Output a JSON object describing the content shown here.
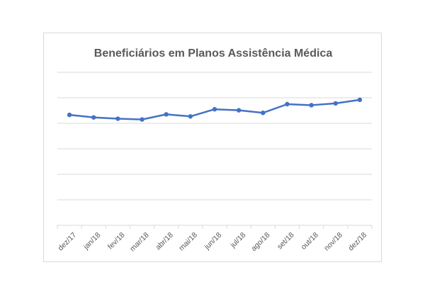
{
  "chart_data": {
    "type": "line",
    "title": "Beneficiários em Planos Assistência Médica",
    "xlabel": "",
    "ylabel": "",
    "categories": [
      "dez/17",
      "jan/18",
      "fev/18",
      "mar/18",
      "abr/18",
      "mai/18",
      "jun/18",
      "jul/18",
      "ago/18",
      "set/18",
      "out/18",
      "nov/18",
      "dez/18"
    ],
    "series": [
      {
        "values": [
          4.33,
          4.23,
          4.18,
          4.15,
          4.35,
          4.27,
          4.55,
          4.51,
          4.41,
          4.75,
          4.71,
          4.78,
          4.92
        ]
      }
    ],
    "ylim": [
      0,
      6
    ],
    "ygrid_step": 1,
    "grid": true,
    "show_y_tick_labels": false,
    "legend": "none",
    "line_color": "#4472c4",
    "grid_color": "#d9d9d9"
  }
}
